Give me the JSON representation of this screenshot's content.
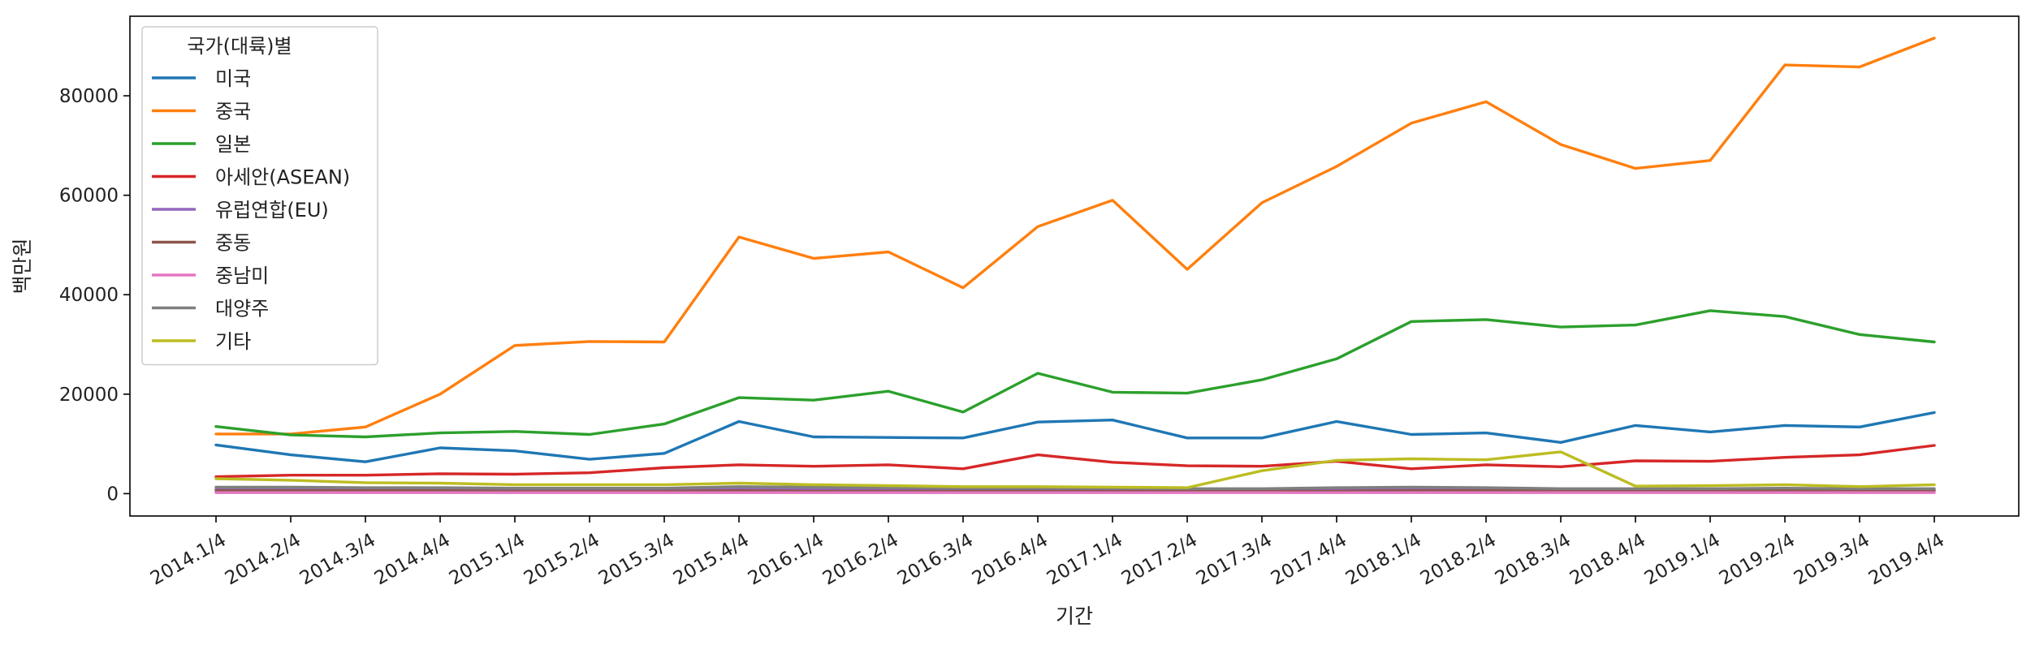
{
  "chart_data": {
    "type": "line",
    "xlabel": "기간",
    "ylabel": "백만원",
    "ylim": [
      -4500,
      96000
    ],
    "yticks": [
      0,
      20000,
      40000,
      60000,
      80000
    ],
    "yticklabels": [
      "0",
      "20000",
      "40000",
      "60000",
      "80000"
    ],
    "grid": false,
    "legend_title": "국가(대륙)별",
    "legend_position": "upper-left",
    "categories": [
      "2014.1/4",
      "2014.2/4",
      "2014.3/4",
      "2014.4/4",
      "2015.1/4",
      "2015.2/4",
      "2015.3/4",
      "2015.4/4",
      "2016.1/4",
      "2016.2/4",
      "2016.3/4",
      "2016.4/4",
      "2017.1/4",
      "2017.2/4",
      "2017.3/4",
      "2017.4/4",
      "2018.1/4",
      "2018.2/4",
      "2018.3/4",
      "2018.4/4",
      "2019.1/4",
      "2019.2/4",
      "2019.3/4",
      "2019.4/4"
    ],
    "series": [
      {
        "name": "미국",
        "color": "#1f77b4",
        "values": [
          9800,
          7800,
          6400,
          9200,
          8600,
          6900,
          8100,
          14500,
          11400,
          11300,
          11200,
          14400,
          14800,
          11200,
          11200,
          14500,
          11900,
          12200,
          10300,
          13700,
          12400,
          13700,
          13400,
          16300
        ]
      },
      {
        "name": "중국",
        "color": "#ff7f0e",
        "values": [
          12000,
          12000,
          13400,
          20000,
          29800,
          30600,
          30500,
          51600,
          47300,
          48600,
          41400,
          53700,
          59000,
          45100,
          58500,
          65800,
          74500,
          78800,
          70200,
          65400,
          67000,
          86200,
          85800,
          91600
        ]
      },
      {
        "name": "일본",
        "color": "#2ca02c",
        "values": [
          13500,
          11800,
          11400,
          12200,
          12500,
          11900,
          14000,
          19300,
          18800,
          20600,
          16400,
          24200,
          20400,
          20200,
          22900,
          27100,
          34600,
          35000,
          33500,
          33900,
          36800,
          35600,
          32000,
          30500
        ]
      },
      {
        "name": "아세안(ASEAN)",
        "color": "#d62728",
        "values": [
          3400,
          3700,
          3700,
          4000,
          3900,
          4200,
          5200,
          5800,
          5500,
          5800,
          5000,
          7800,
          6300,
          5600,
          5500,
          6500,
          5000,
          5800,
          5400,
          6600,
          6500,
          7300,
          7800,
          9700
        ]
      },
      {
        "name": "유럽연합(EU)",
        "color": "#9467bd",
        "values": [
          900,
          900,
          800,
          800,
          700,
          700,
          700,
          900,
          800,
          800,
          700,
          700,
          800,
          700,
          800,
          800,
          900,
          900,
          800,
          800,
          800,
          900,
          800,
          900
        ]
      },
      {
        "name": "중동",
        "color": "#8c564b",
        "values": [
          600,
          600,
          600,
          600,
          500,
          500,
          500,
          600,
          500,
          500,
          500,
          500,
          500,
          500,
          500,
          500,
          600,
          600,
          500,
          500,
          500,
          600,
          500,
          600
        ]
      },
      {
        "name": "중남미",
        "color": "#e377c2",
        "values": [
          200,
          200,
          200,
          200,
          200,
          200,
          200,
          200,
          200,
          200,
          200,
          200,
          200,
          200,
          200,
          200,
          200,
          200,
          200,
          200,
          200,
          200,
          200,
          200
        ]
      },
      {
        "name": "대양주",
        "color": "#7f7f7f",
        "values": [
          1300,
          1300,
          1200,
          1200,
          1100,
          1100,
          1100,
          1400,
          1300,
          1200,
          1100,
          1100,
          1100,
          1000,
          1000,
          1200,
          1300,
          1200,
          1000,
          1000,
          1000,
          1100,
          1000,
          1000
        ]
      },
      {
        "name": "기타",
        "color": "#bcbd22",
        "values": [
          3000,
          2700,
          2200,
          2100,
          1800,
          1800,
          1800,
          2100,
          1800,
          1600,
          1400,
          1400,
          1300,
          1200,
          4600,
          6700,
          7000,
          6800,
          8400,
          1500,
          1600,
          1800,
          1400,
          1800
        ]
      }
    ]
  }
}
